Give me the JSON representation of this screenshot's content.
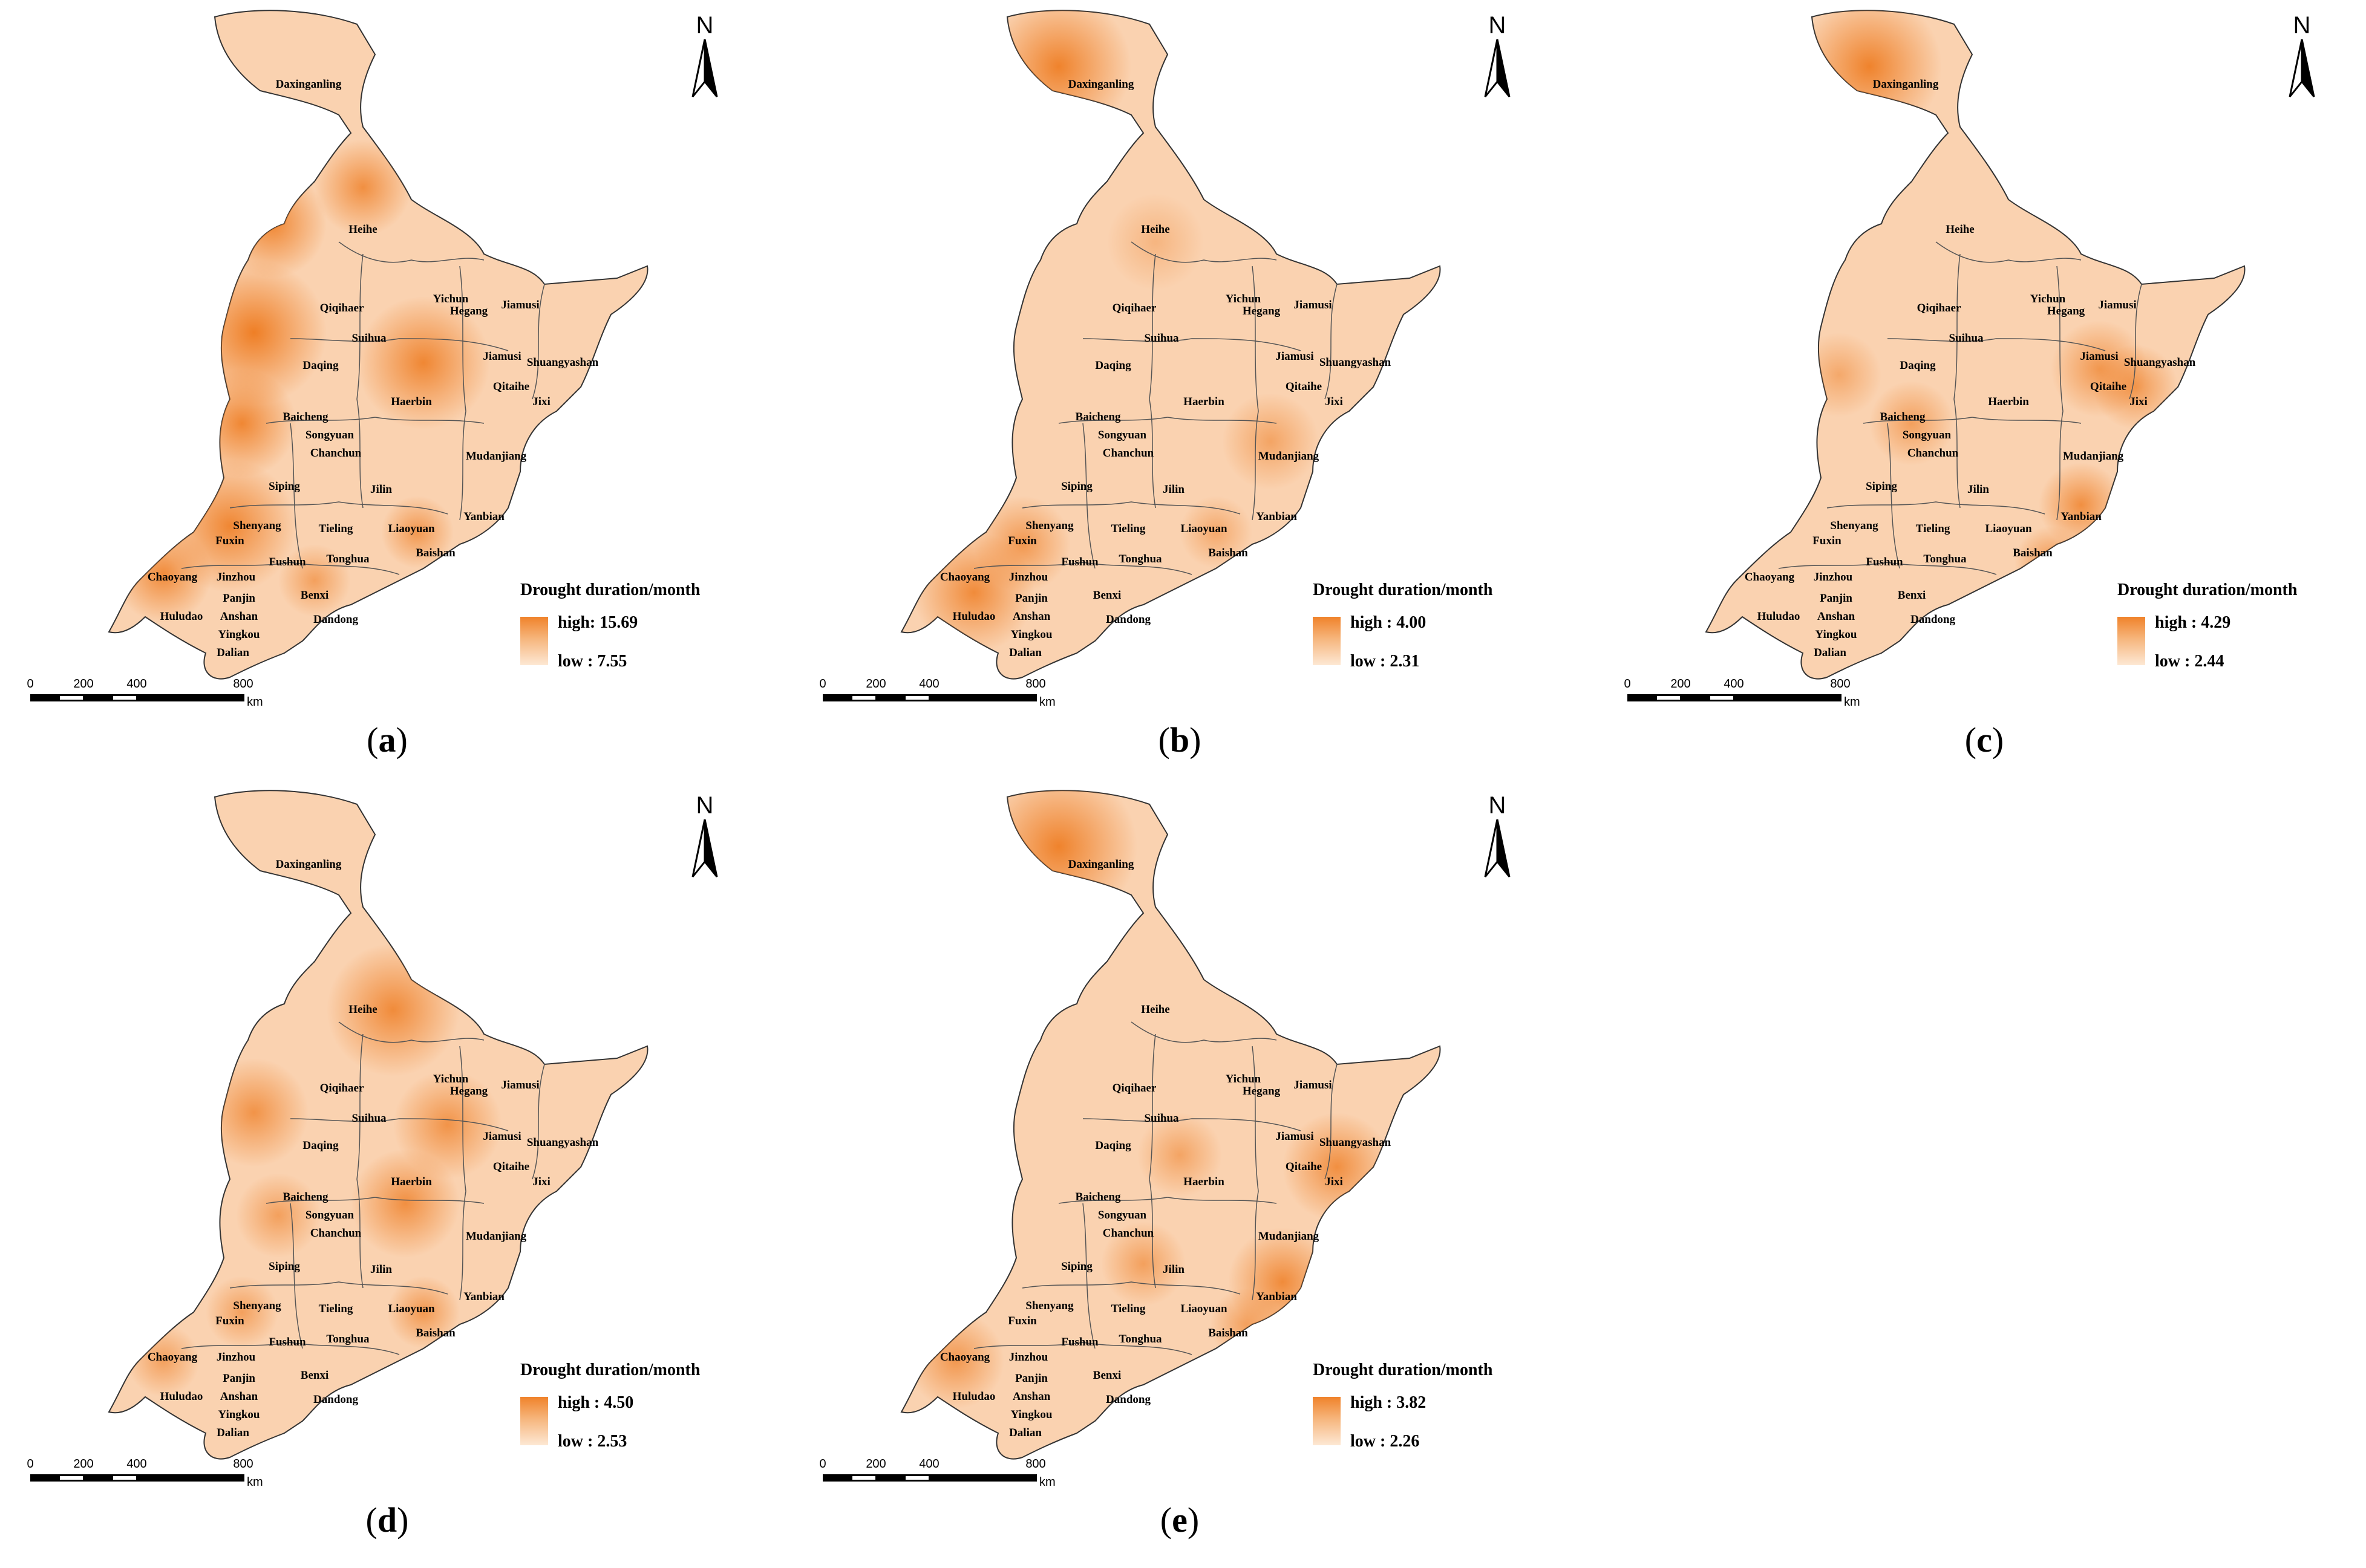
{
  "legend_title": "Drought duration/month",
  "scale": {
    "ticks": [
      "0",
      "200",
      "400",
      "800"
    ],
    "unit": "km"
  },
  "north_label": "N",
  "colors": {
    "high": "#f0822a",
    "low": "#fde8d4",
    "boundary": "#333333"
  },
  "city_labels": [
    "Daxinganling",
    "Heihe",
    "Qiqihaer",
    "Yichun",
    "Hegang",
    "Jiamusi",
    "Suihua",
    "Daqing",
    "Jiamusi",
    "Shuangyashan",
    "Qitaihe",
    "Jixi",
    "Haerbin",
    "Baicheng",
    "Songyuan",
    "Chanchun",
    "Mudanjiang",
    "Siping",
    "Jilin",
    "Yanbian",
    "Shenyang",
    "Tieling",
    "Liaoyuan",
    "Fuxin",
    "Fushun",
    "Tonghua",
    "Baishan",
    "Chaoyang",
    "Jinzhou",
    "Benxi",
    "Panjin",
    "Huludao",
    "Anshan",
    "Dandong",
    "Yingkou",
    "Dalian"
  ],
  "panels": [
    {
      "label": "a",
      "high": "high: 15.69",
      "low": "low : 7.55",
      "high_value": 15.69,
      "low_value": 7.55
    },
    {
      "label": "b",
      "high": "high : 4.00",
      "low": "low : 2.31",
      "high_value": 4.0,
      "low_value": 2.31
    },
    {
      "label": "c",
      "high": "high : 4.29",
      "low": "low : 2.44",
      "high_value": 4.29,
      "low_value": 2.44
    },
    {
      "label": "d",
      "high": "high : 4.50",
      "low": "low : 2.53",
      "high_value": 4.5,
      "low_value": 2.53
    },
    {
      "label": "e",
      "high": "high : 3.82",
      "low": "low : 2.26",
      "high_value": 3.82,
      "low_value": 2.26
    }
  ]
}
